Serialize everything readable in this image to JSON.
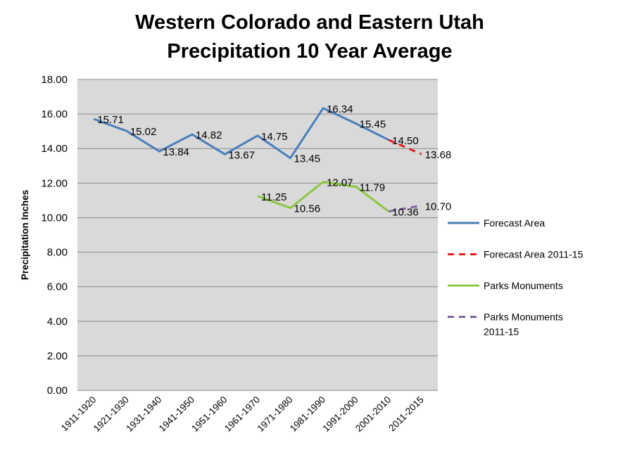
{
  "chart_data": {
    "type": "line",
    "title": [
      "Western Colorado and Eastern Utah",
      "Precipitation 10 Year Average"
    ],
    "xlabel": "",
    "ylabel": "Precipitation Inches",
    "ylim": [
      0,
      18
    ],
    "ytick_step": 2,
    "yticks": [
      "0.00",
      "2.00",
      "4.00",
      "6.00",
      "8.00",
      "10.00",
      "12.00",
      "14.00",
      "16.00",
      "18.00"
    ],
    "categories": [
      "1911-1920",
      "1921-1930",
      "1931-1940",
      "1941-1950",
      "1951-1960",
      "1961-1970",
      "1971-1980",
      "1981-1990",
      "1991-2000",
      "2001-2010",
      "2011-2015"
    ],
    "grid": true,
    "legend_position": "right",
    "plot_background": "#d9d9d9",
    "series": [
      {
        "name": "Forecast Area",
        "color": "#4a7ebb",
        "dashed": false,
        "values": [
          15.71,
          15.02,
          13.84,
          14.82,
          13.67,
          14.75,
          13.45,
          16.34,
          15.45,
          14.5,
          null
        ],
        "labels": [
          "15.71",
          "15.02",
          "13.84",
          "14.82",
          "13.67",
          "14.75",
          "13.45",
          "16.34",
          "15.45",
          "14.50",
          null
        ]
      },
      {
        "name": "Forecast Area 2011-15",
        "color": "#e02020",
        "dashed": true,
        "values": [
          null,
          null,
          null,
          null,
          null,
          null,
          null,
          null,
          null,
          14.5,
          13.68
        ],
        "labels": [
          null,
          null,
          null,
          null,
          null,
          null,
          null,
          null,
          null,
          null,
          "13.68"
        ]
      },
      {
        "name": "Parks Monuments",
        "color": "#8cc63f",
        "dashed": false,
        "values": [
          null,
          null,
          null,
          null,
          null,
          11.25,
          10.56,
          12.07,
          11.79,
          10.36,
          null
        ],
        "labels": [
          null,
          null,
          null,
          null,
          null,
          "11.25",
          "10.56",
          "12.07",
          "11.79",
          "10.36",
          null
        ]
      },
      {
        "name": "Parks Monuments 2011-15",
        "color": "#8064a2",
        "dashed": true,
        "values": [
          null,
          null,
          null,
          null,
          null,
          null,
          null,
          null,
          null,
          10.36,
          10.7
        ],
        "labels": [
          null,
          null,
          null,
          null,
          null,
          null,
          null,
          null,
          null,
          null,
          "10.70"
        ]
      }
    ]
  }
}
